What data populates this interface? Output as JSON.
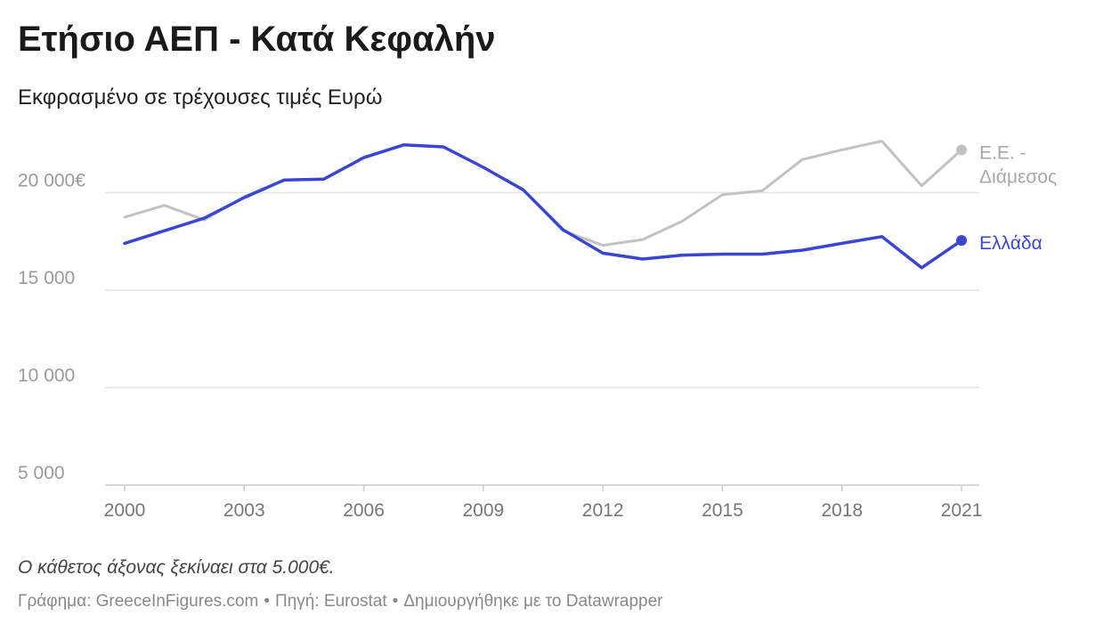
{
  "header": {
    "title": "Ετήσιο ΑΕΠ - Κατά Κεφαλήν",
    "subtitle": "Εκφρασμένο σε τρέχουσες τιμές Ευρώ"
  },
  "footer": {
    "note": "Ο κάθετος άξονας ξεκίναει στα 5.000€.",
    "credit": "Γράφημα: GreeceInFigures.com",
    "source": "Πηγή: Eurostat",
    "made_with": "Δημιουργήθηκε με το Datawrapper",
    "separator": "•"
  },
  "chart_data": {
    "type": "line",
    "x": [
      2000,
      2001,
      2002,
      2003,
      2004,
      2005,
      2006,
      2007,
      2008,
      2009,
      2010,
      2011,
      2012,
      2013,
      2014,
      2015,
      2016,
      2017,
      2018,
      2019,
      2020,
      2021
    ],
    "x_ticks": [
      "2000",
      "2003",
      "2006",
      "2009",
      "2012",
      "2015",
      "2018",
      "2021"
    ],
    "y_ticks": [
      {
        "value": 5000,
        "label": "5 000"
      },
      {
        "value": 10000,
        "label": "10 000"
      },
      {
        "value": 15000,
        "label": "15 000"
      },
      {
        "value": 20000,
        "label": "20 000€"
      }
    ],
    "ylim": [
      5000,
      23000
    ],
    "grid": true,
    "legend": "inline-right",
    "series": [
      {
        "name": "Ε.Ε. - Διάμεσος",
        "label_lines": [
          "Ε.Ε. -",
          "Διάμεσος"
        ],
        "color": "#c2c2c2",
        "values": [
          18750,
          19350,
          18600,
          19800,
          20650,
          20700,
          21800,
          22450,
          22350,
          21300,
          20150,
          18050,
          17300,
          17600,
          18550,
          19900,
          20100,
          21700,
          22200,
          22650,
          20350,
          22200
        ]
      },
      {
        "name": "Ελλάδα",
        "label_lines": [
          "Ελλάδα"
        ],
        "color": "#3a45d4",
        "values": [
          17400,
          18050,
          18700,
          19750,
          20650,
          20700,
          21800,
          22450,
          22350,
          21300,
          20150,
          18100,
          16900,
          16600,
          16800,
          16850,
          16850,
          17050,
          17400,
          17750,
          16150,
          17550
        ]
      }
    ]
  }
}
